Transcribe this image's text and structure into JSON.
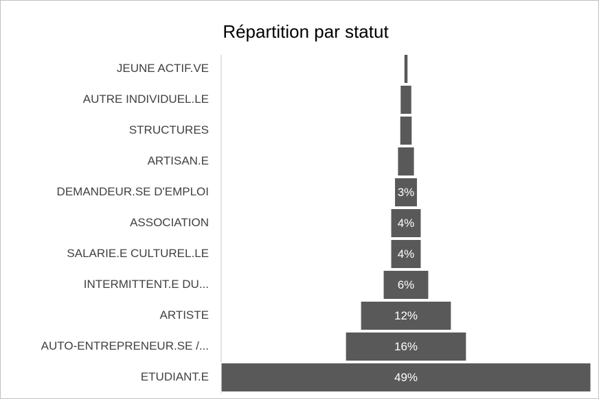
{
  "chart_data": {
    "type": "funnel",
    "title": "Répartition par statut",
    "categories": [
      "JEUNE ACTIF.VE",
      "AUTRE INDIVIDUEL.LE",
      "STRUCTURES",
      "ARTISAN.E",
      "DEMANDEUR.SE D'EMPLOI",
      "ASSOCIATION",
      "SALARIE.E CULTUREL.LE",
      "INTERMITTENT.E DU...",
      "ARTISTE",
      "AUTO-ENTREPRENEUR.SE /...",
      "ETUDIANT.E"
    ],
    "values": [
      0.5,
      1.5,
      1.6,
      2.2,
      3,
      4,
      4,
      6,
      12,
      16,
      49
    ],
    "value_labels": [
      null,
      null,
      null,
      null,
      "3%",
      "4%",
      "4%",
      "6%",
      "12%",
      "16%",
      "49%"
    ],
    "color": "#595959"
  }
}
